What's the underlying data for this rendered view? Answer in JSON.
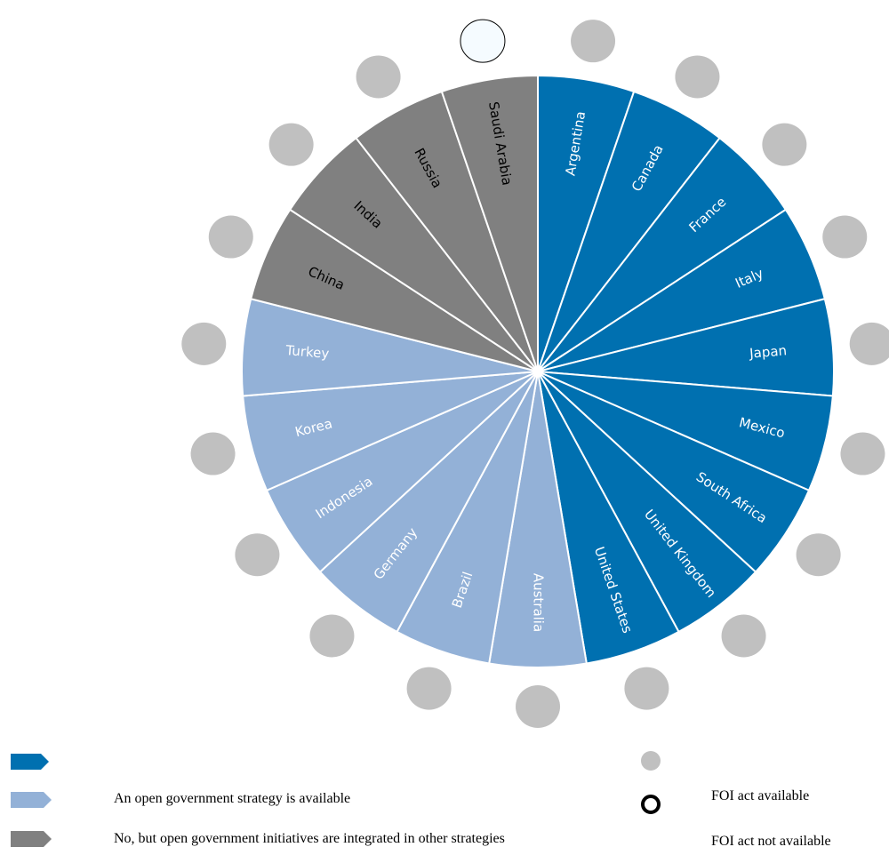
{
  "chart_data": {
    "type": "pie",
    "title": "",
    "categories_legend": [
      {
        "key": "strategy",
        "label": "",
        "color": "#0070B0"
      },
      {
        "key": "available",
        "label": "An open government strategy is available",
        "color": "#93B1D7"
      },
      {
        "key": "integrated",
        "label": "No, but open government initiatives are integrated in other strategies",
        "color": "#808080"
      }
    ],
    "foi_legend": [
      {
        "key": "foi_yes",
        "label": "FOI act available",
        "marker": "filled-grey"
      },
      {
        "key": "foi_no",
        "label": "FOI act not available",
        "marker": "ring"
      }
    ],
    "slices": [
      {
        "country": "Argentina",
        "value": 1,
        "category": "strategy",
        "foi": "yes"
      },
      {
        "country": "Canada",
        "value": 1,
        "category": "strategy",
        "foi": "yes"
      },
      {
        "country": "France",
        "value": 1,
        "category": "strategy",
        "foi": "yes"
      },
      {
        "country": "Italy",
        "value": 1,
        "category": "strategy",
        "foi": "yes"
      },
      {
        "country": "Japan",
        "value": 1,
        "category": "strategy",
        "foi": "yes"
      },
      {
        "country": "Mexico",
        "value": 1,
        "category": "strategy",
        "foi": "yes"
      },
      {
        "country": "South Africa",
        "value": 1,
        "category": "strategy",
        "foi": "yes"
      },
      {
        "country": "United Kingdom",
        "value": 1,
        "category": "strategy",
        "foi": "yes"
      },
      {
        "country": "United States",
        "value": 1,
        "category": "strategy",
        "foi": "yes"
      },
      {
        "country": "Australia",
        "value": 1,
        "category": "available",
        "foi": "yes"
      },
      {
        "country": "Brazil",
        "value": 1,
        "category": "available",
        "foi": "yes"
      },
      {
        "country": "Germany",
        "value": 1,
        "category": "available",
        "foi": "yes"
      },
      {
        "country": "Indonesia",
        "value": 1,
        "category": "available",
        "foi": "yes"
      },
      {
        "country": "Korea",
        "value": 1,
        "category": "available",
        "foi": "yes"
      },
      {
        "country": "Turkey",
        "value": 1,
        "category": "available",
        "foi": "yes"
      },
      {
        "country": "China",
        "value": 1,
        "category": "integrated",
        "foi": "yes"
      },
      {
        "country": "India",
        "value": 1,
        "category": "integrated",
        "foi": "yes"
      },
      {
        "country": "Russia",
        "value": 1,
        "category": "integrated",
        "foi": "yes"
      },
      {
        "country": "Saudi Arabia",
        "value": 1,
        "category": "integrated",
        "foi": "no"
      }
    ]
  }
}
